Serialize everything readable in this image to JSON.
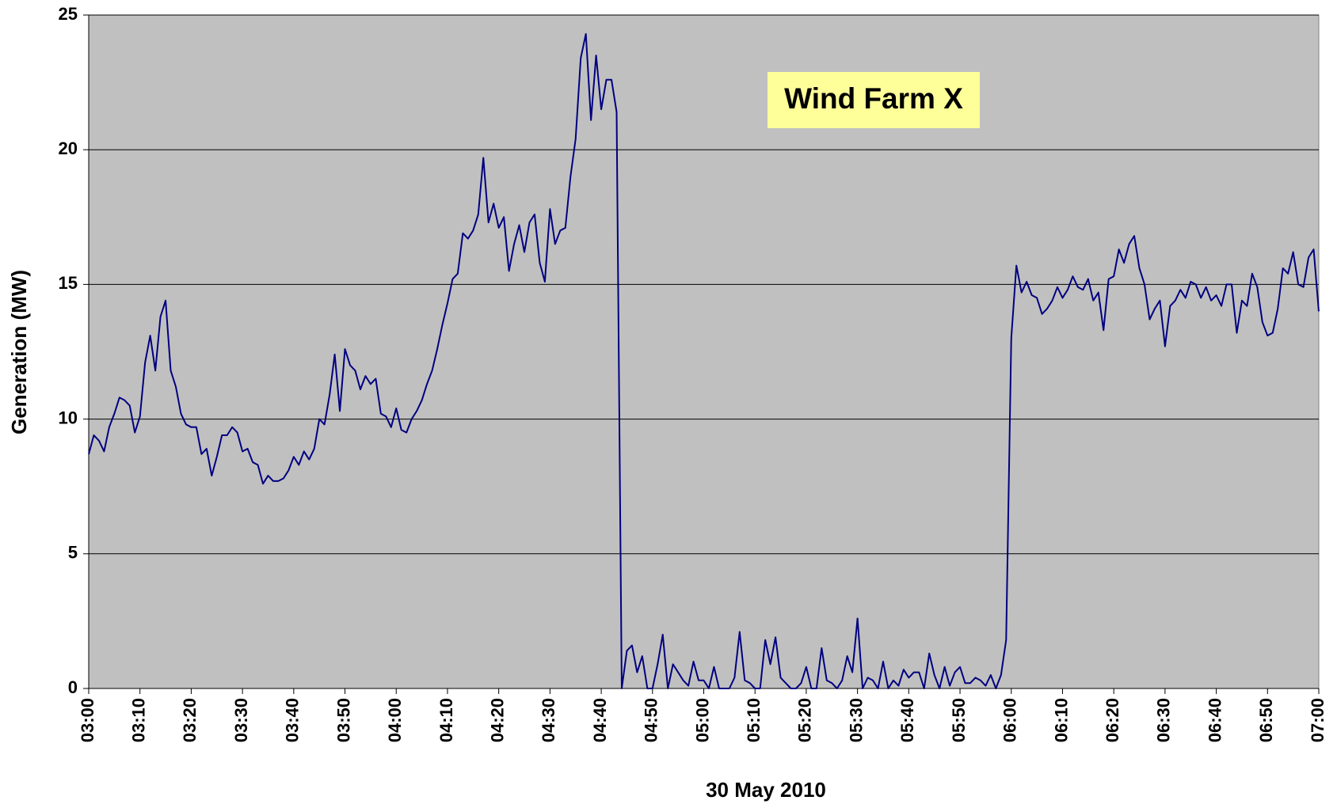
{
  "chart_data": {
    "type": "line",
    "annotation": "Wind Farm X",
    "xlabel": "30 May 2010",
    "ylabel": "Generation (MW)",
    "categories": [
      "03:00",
      null,
      null,
      null,
      null,
      null,
      null,
      null,
      null,
      null,
      "03:10",
      null,
      null,
      null,
      null,
      null,
      null,
      null,
      null,
      null,
      "03:20",
      null,
      null,
      null,
      null,
      null,
      null,
      null,
      null,
      null,
      "03:30",
      null,
      null,
      null,
      null,
      null,
      null,
      null,
      null,
      null,
      "03:40",
      null,
      null,
      null,
      null,
      null,
      null,
      null,
      null,
      null,
      "03:50",
      null,
      null,
      null,
      null,
      null,
      null,
      null,
      null,
      null,
      "04:00",
      null,
      null,
      null,
      null,
      null,
      null,
      null,
      null,
      null,
      "04:10",
      null,
      null,
      null,
      null,
      null,
      null,
      null,
      null,
      null,
      "04:20",
      null,
      null,
      null,
      null,
      null,
      null,
      null,
      null,
      null,
      "04:30",
      null,
      null,
      null,
      null,
      null,
      null,
      null,
      null,
      null,
      "04:40",
      null,
      null,
      null,
      null,
      null,
      null,
      null,
      null,
      null,
      "04:50",
      null,
      null,
      null,
      null,
      null,
      null,
      null,
      null,
      null,
      "05:00",
      null,
      null,
      null,
      null,
      null,
      null,
      null,
      null,
      null,
      "05:10",
      null,
      null,
      null,
      null,
      null,
      null,
      null,
      null,
      null,
      "05:20",
      null,
      null,
      null,
      null,
      null,
      null,
      null,
      null,
      null,
      "05:30",
      null,
      null,
      null,
      null,
      null,
      null,
      null,
      null,
      null,
      "05:40",
      null,
      null,
      null,
      null,
      null,
      null,
      null,
      null,
      null,
      "05:50",
      null,
      null,
      null,
      null,
      null,
      null,
      null,
      null,
      null,
      "06:00",
      null,
      null,
      null,
      null,
      null,
      null,
      null,
      null,
      null,
      "06:10",
      null,
      null,
      null,
      null,
      null,
      null,
      null,
      null,
      null,
      "06:20",
      null,
      null,
      null,
      null,
      null,
      null,
      null,
      null,
      null,
      "06:30",
      null,
      null,
      null,
      null,
      null,
      null,
      null,
      null,
      null,
      "06:40",
      null,
      null,
      null,
      null,
      null,
      null,
      null,
      null,
      null,
      "06:50",
      null,
      null,
      null,
      null,
      null,
      null,
      null,
      null,
      null,
      "07:00"
    ],
    "values": [
      8.7,
      9.4,
      9.2,
      8.8,
      9.7,
      10.2,
      10.8,
      10.7,
      10.5,
      9.5,
      10.1,
      12.1,
      13.1,
      11.8,
      13.8,
      14.4,
      11.8,
      11.2,
      10.2,
      9.8,
      9.7,
      9.7,
      8.7,
      8.9,
      7.9,
      8.6,
      9.4,
      9.4,
      9.7,
      9.5,
      8.8,
      8.9,
      8.4,
      8.3,
      7.6,
      7.9,
      7.7,
      7.7,
      7.8,
      8.1,
      8.6,
      8.3,
      8.8,
      8.5,
      8.9,
      10.0,
      9.8,
      10.9,
      12.4,
      10.3,
      12.6,
      12.0,
      11.8,
      11.1,
      11.6,
      11.3,
      11.5,
      10.2,
      10.1,
      9.7,
      10.4,
      9.6,
      9.5,
      10.0,
      10.3,
      10.7,
      11.3,
      11.8,
      12.6,
      13.5,
      14.3,
      15.2,
      15.4,
      16.9,
      16.7,
      17.0,
      17.6,
      19.7,
      17.3,
      18.0,
      17.1,
      17.5,
      15.5,
      16.5,
      17.2,
      16.2,
      17.3,
      17.6,
      15.8,
      15.1,
      17.8,
      16.5,
      17.0,
      17.1,
      19.0,
      20.4,
      23.4,
      24.3,
      21.1,
      23.5,
      21.5,
      22.6,
      22.6,
      21.4,
      0,
      1.4,
      1.6,
      0.6,
      1.2,
      0,
      0,
      0.9,
      2.0,
      0,
      0.9,
      0.6,
      0.3,
      0.1,
      1.0,
      0.3,
      0.3,
      0,
      0.8,
      0,
      0,
      0,
      0.4,
      2.1,
      0.3,
      0.2,
      0,
      0,
      1.8,
      0.9,
      1.9,
      0.4,
      0.2,
      0,
      0,
      0.2,
      0.8,
      0,
      0,
      1.5,
      0.3,
      0.2,
      0,
      0.3,
      1.2,
      0.6,
      2.6,
      0,
      0.4,
      0.3,
      0,
      1.0,
      0,
      0.3,
      0.1,
      0.7,
      0.4,
      0.6,
      0.6,
      0,
      1.3,
      0.5,
      0,
      0.8,
      0.1,
      0.6,
      0.8,
      0.2,
      0.2,
      0.4,
      0.3,
      0.1,
      0.5,
      0,
      0.5,
      1.8,
      13.0,
      15.7,
      14.7,
      15.1,
      14.6,
      14.5,
      13.9,
      14.1,
      14.4,
      14.9,
      14.5,
      14.8,
      15.3,
      14.9,
      14.8,
      15.2,
      14.4,
      14.7,
      13.3,
      15.2,
      15.3,
      16.3,
      15.8,
      16.5,
      16.8,
      15.6,
      15.0,
      13.7,
      14.1,
      14.4,
      12.7,
      14.2,
      14.4,
      14.8,
      14.5,
      15.1,
      15.0,
      14.5,
      14.9,
      14.4,
      14.6,
      14.2,
      15.0,
      15.0,
      13.2,
      14.4,
      14.2,
      15.4,
      14.9,
      13.6,
      13.1,
      13.2,
      14.1,
      15.6,
      15.4,
      16.2,
      15.0,
      14.9,
      16.0,
      16.3,
      14.0
    ],
    "color": "#000080",
    "ylim": [
      0,
      25
    ],
    "yticks": [
      0,
      5,
      10,
      15,
      20,
      25
    ],
    "grid": true
  }
}
